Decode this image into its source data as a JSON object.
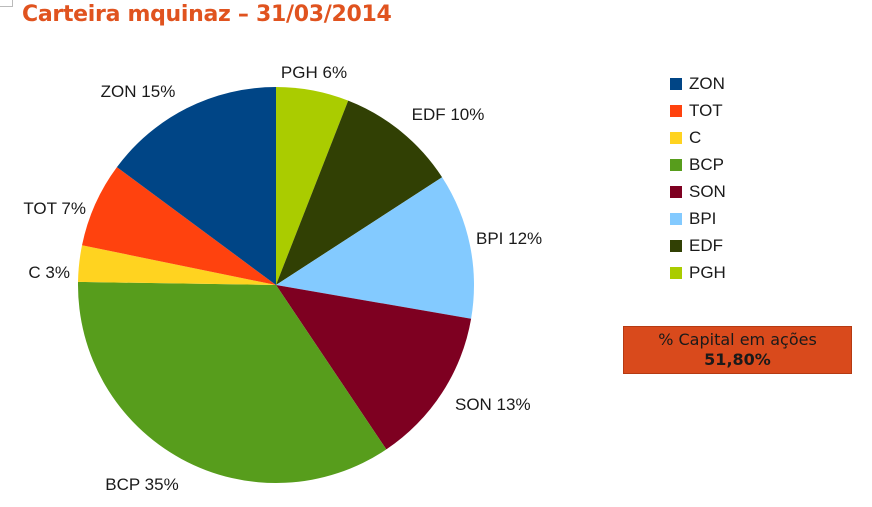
{
  "title": "Carteira mquinaz – 31/03/2014",
  "chart_data": {
    "type": "pie",
    "start_angle_deg": 0,
    "direction": "clockwise",
    "slices": [
      {
        "name": "PGH",
        "value": 6,
        "label": "PGH 6%",
        "color": "#aacc00"
      },
      {
        "name": "EDF",
        "value": 10,
        "label": "EDF 10%",
        "color": "#314004"
      },
      {
        "name": "BPI",
        "value": 12,
        "label": "BPI 12%",
        "color": "#83caff"
      },
      {
        "name": "SON",
        "value": 13,
        "label": "SON 13%",
        "color": "#7e0021"
      },
      {
        "name": "BCP",
        "value": 35,
        "label": "BCP 35%",
        "color": "#579d1c"
      },
      {
        "name": "C",
        "value": 3,
        "label": "C 3%",
        "color": "#ffd320"
      },
      {
        "name": "TOT",
        "value": 7,
        "label": "TOT 7%",
        "color": "#ff420e"
      },
      {
        "name": "ZON",
        "value": 15,
        "label": "ZON 15%",
        "color": "#004586"
      }
    ],
    "legend": [
      {
        "name": "ZON",
        "color": "#004586"
      },
      {
        "name": "TOT",
        "color": "#ff420e"
      },
      {
        "name": "C",
        "color": "#ffd320"
      },
      {
        "name": "BCP",
        "color": "#579d1c"
      },
      {
        "name": "SON",
        "color": "#7e0021"
      },
      {
        "name": "BPI",
        "color": "#83caff"
      },
      {
        "name": "EDF",
        "color": "#314004"
      },
      {
        "name": "PGH",
        "color": "#aacc00"
      }
    ],
    "legend_position": "right"
  },
  "capital_box": {
    "label": "% Capital em ações",
    "value": "51,80%",
    "color": "#d94a1c"
  }
}
